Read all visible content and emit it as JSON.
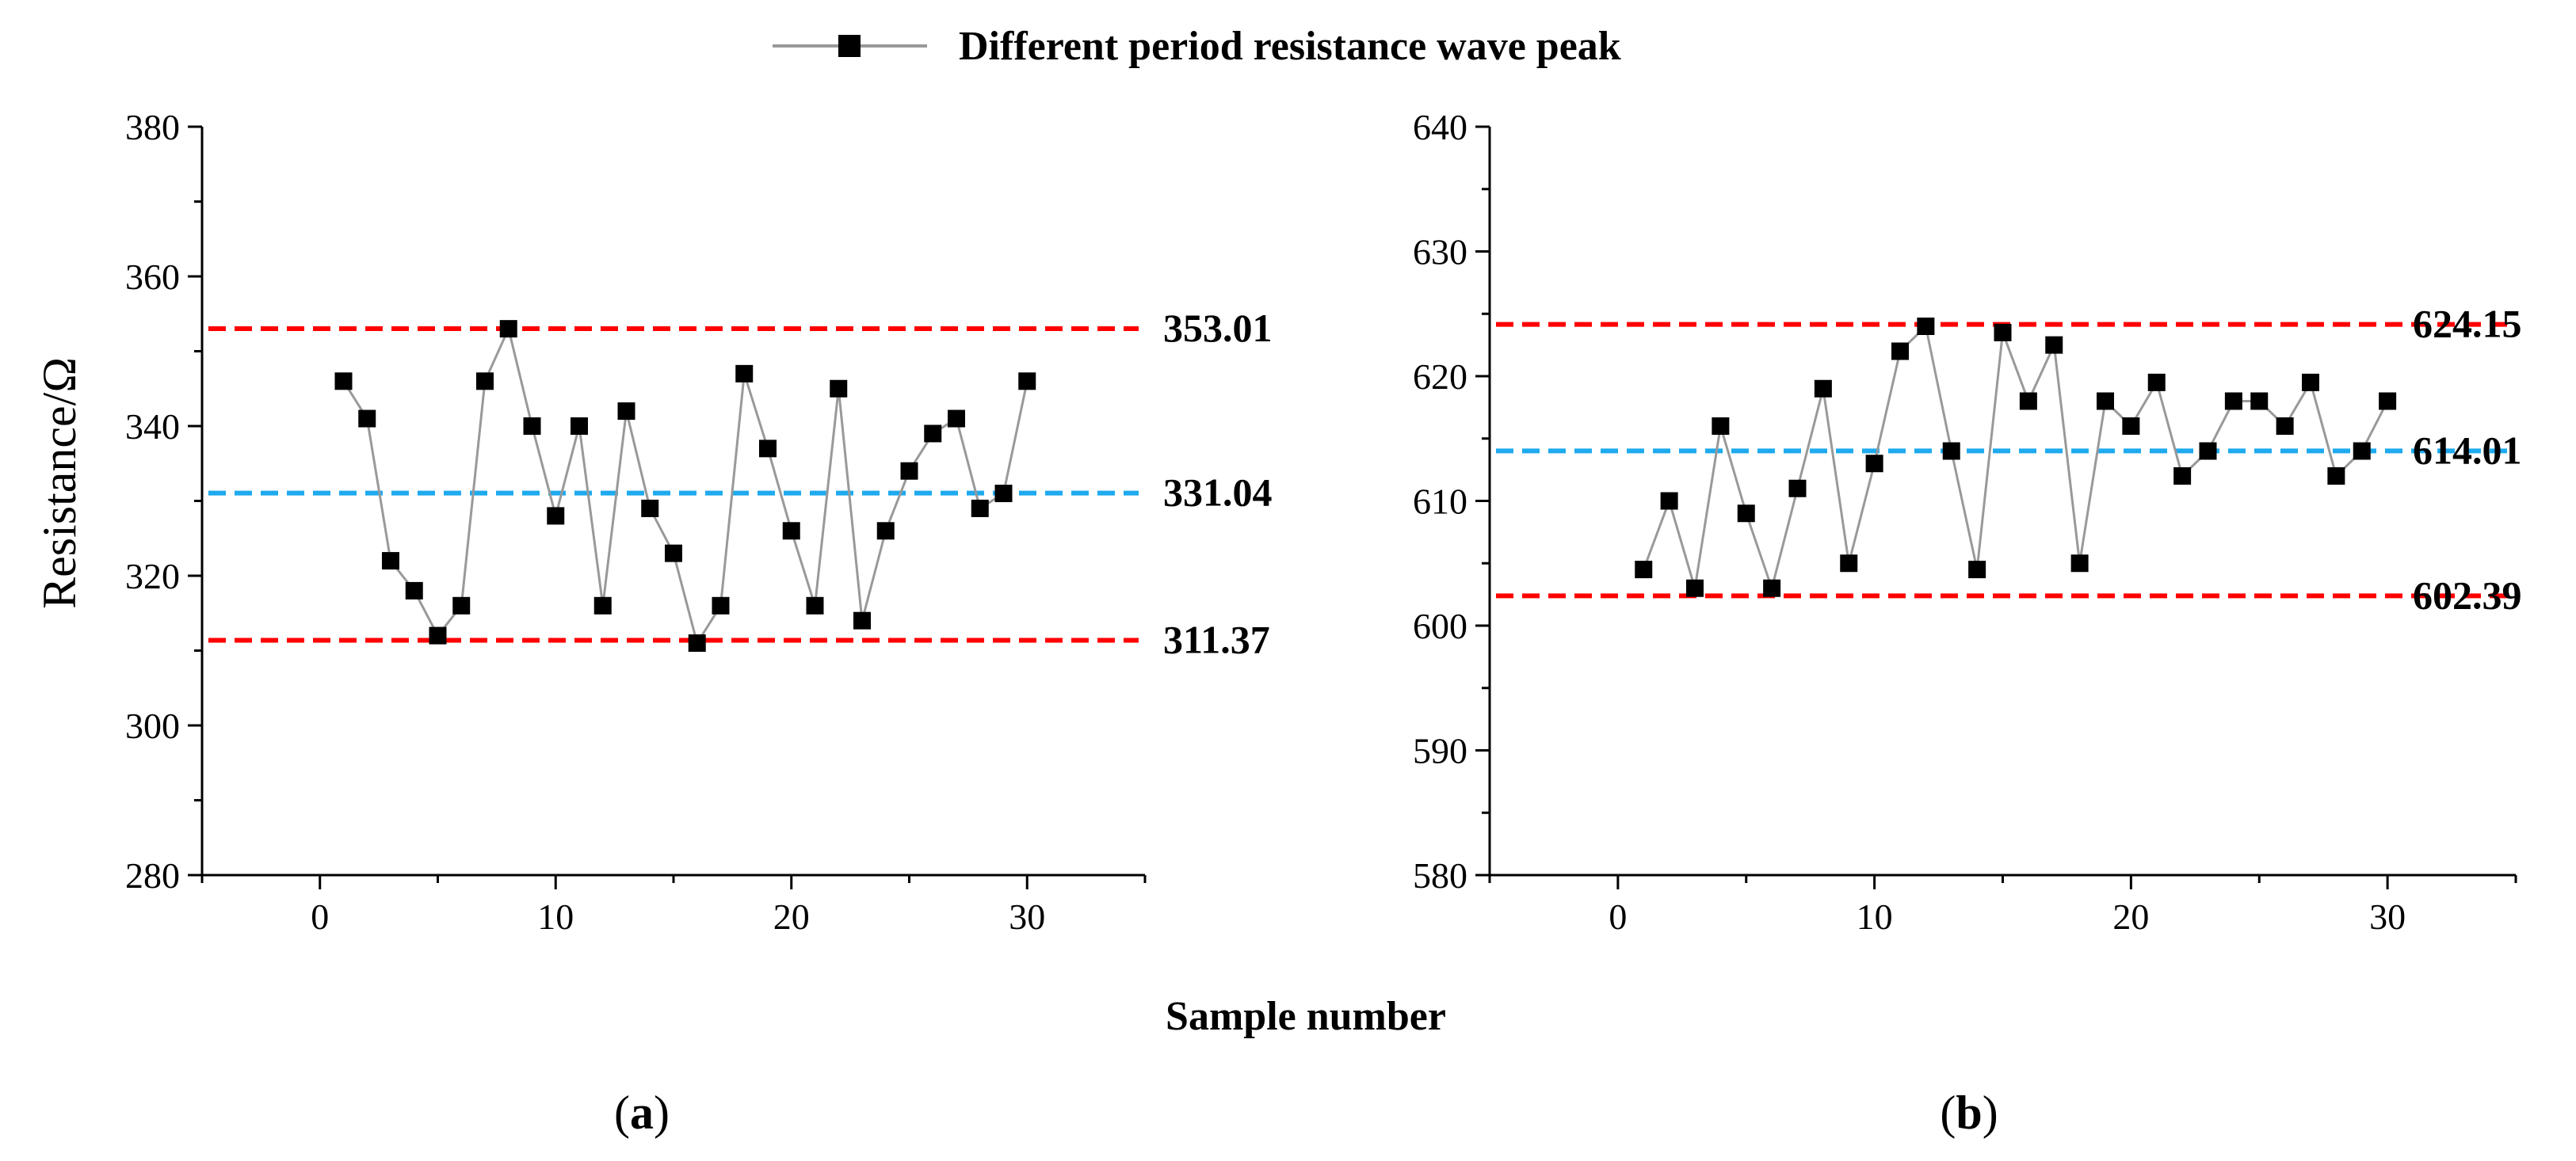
{
  "legend": {
    "label": "Different period resistance wave peak"
  },
  "xlabel": "Sample number",
  "ylabel": "Resistance/Ω",
  "colors": {
    "series": "#000000",
    "line": "#999999",
    "limit": "#ff0000",
    "mean": "#1eaaee",
    "axis": "#000000"
  },
  "chart_data": [
    {
      "type": "line",
      "panel_label": "a",
      "panel_label_open": "(",
      "panel_label_close": ")",
      "series": [
        {
          "name": "Different period resistance wave peak",
          "x": [
            1,
            2,
            3,
            4,
            5,
            6,
            7,
            8,
            9,
            10,
            11,
            12,
            13,
            14,
            15,
            16,
            17,
            18,
            19,
            20,
            21,
            22,
            23,
            24,
            25,
            26,
            27,
            28,
            29,
            30
          ],
          "values": [
            346,
            341,
            322,
            318,
            312,
            316,
            346,
            353,
            340,
            328,
            340,
            316,
            342,
            329,
            323,
            311,
            316,
            347,
            337,
            326,
            316,
            345,
            314,
            326,
            334,
            339,
            341,
            329,
            331,
            346
          ]
        }
      ],
      "reference_lines": [
        {
          "value": 353.01,
          "label": "353.01",
          "kind": "limit"
        },
        {
          "value": 331.04,
          "label": "331.04",
          "kind": "mean"
        },
        {
          "value": 311.37,
          "label": "311.37",
          "kind": "limit"
        }
      ],
      "xlim": [
        -5,
        35
      ],
      "ylim": [
        280,
        380
      ],
      "xticks": [
        0,
        10,
        20,
        30
      ],
      "yticks": [
        280,
        300,
        320,
        340,
        360,
        380
      ],
      "xtick_labels": [
        "0",
        "10",
        "20",
        "30"
      ],
      "ytick_labels": [
        "280",
        "300",
        "320",
        "340",
        "360",
        "380"
      ]
    },
    {
      "type": "line",
      "panel_label": "b",
      "panel_label_open": "(",
      "panel_label_close": ")",
      "series": [
        {
          "name": "Different period resistance wave peak",
          "x": [
            1,
            2,
            3,
            4,
            5,
            6,
            7,
            8,
            9,
            10,
            11,
            12,
            13,
            14,
            15,
            16,
            17,
            18,
            19,
            20,
            21,
            22,
            23,
            24,
            25,
            26,
            27,
            28,
            29,
            30
          ],
          "values": [
            604.5,
            610,
            603,
            616,
            609,
            603,
            611,
            619,
            605,
            613,
            622,
            624,
            614,
            604.5,
            623.5,
            618,
            622.5,
            605,
            618,
            616,
            619.5,
            612,
            614,
            618,
            618,
            616,
            619.5,
            612,
            614,
            618
          ]
        }
      ],
      "reference_lines": [
        {
          "value": 624.15,
          "label": "624.15",
          "kind": "limit"
        },
        {
          "value": 614.01,
          "label": "614.01",
          "kind": "mean"
        },
        {
          "value": 602.39,
          "label": "602.39",
          "kind": "limit"
        }
      ],
      "xlim": [
        -5,
        35
      ],
      "ylim": [
        580,
        640
      ],
      "xticks": [
        0,
        10,
        20,
        30
      ],
      "yticks": [
        580,
        590,
        600,
        610,
        620,
        630,
        640
      ],
      "xtick_labels": [
        "0",
        "10",
        "20",
        "30"
      ],
      "ytick_labels": [
        "580",
        "590",
        "600",
        "610",
        "620",
        "630",
        "640"
      ]
    }
  ]
}
